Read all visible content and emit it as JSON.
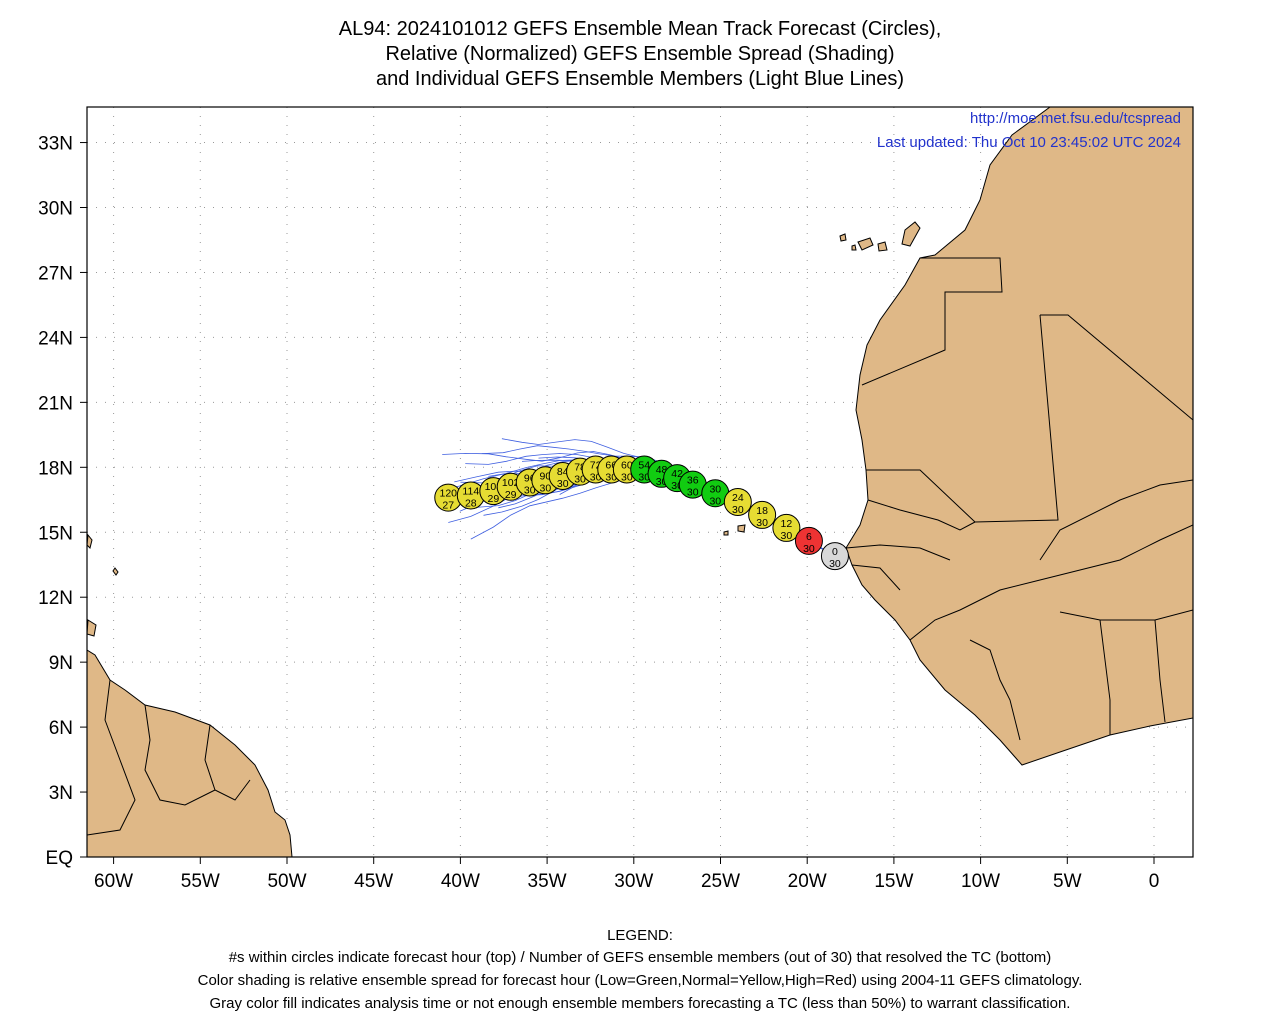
{
  "title": {
    "line1": "AL94: 2024101012 GEFS Ensemble Mean Track Forecast (Circles),",
    "line2": "Relative (Normalized) GEFS Ensemble Spread (Shading)",
    "line3": "and Individual GEFS Ensemble Members (Light Blue Lines)"
  },
  "source_url": "http://moe.met.fsu.edu/tcspread",
  "last_updated": "Last updated: Thu Oct 10 23:45:02 UTC 2024",
  "lat_labels": [
    "33N",
    "30N",
    "27N",
    "24N",
    "21N",
    "18N",
    "15N",
    "12N",
    "9N",
    "6N",
    "3N",
    "EQ"
  ],
  "lon_labels": [
    "60W",
    "55W",
    "50W",
    "45W",
    "40W",
    "35W",
    "30W",
    "25W",
    "20W",
    "15W",
    "10W",
    "5W",
    "0"
  ],
  "colors": {
    "land": "#dfb887",
    "member_track": "#3f5fe0",
    "green": "#11cc11",
    "yellow": "#e6dc33",
    "red": "#ee3333",
    "gray": "#d8d8d8",
    "url_text": "#2233cc"
  },
  "track_points": [
    {
      "hour": "0",
      "members": "30",
      "lon": -18.4,
      "lat": 13.9,
      "spread": "gray"
    },
    {
      "hour": "6",
      "members": "30",
      "lon": -19.9,
      "lat": 14.6,
      "spread": "red"
    },
    {
      "hour": "12",
      "members": "30",
      "lon": -21.2,
      "lat": 15.2,
      "spread": "yellow"
    },
    {
      "hour": "18",
      "members": "30",
      "lon": -22.6,
      "lat": 15.8,
      "spread": "yellow"
    },
    {
      "hour": "24",
      "members": "30",
      "lon": -24.0,
      "lat": 16.4,
      "spread": "yellow"
    },
    {
      "hour": "30",
      "members": "30",
      "lon": -25.3,
      "lat": 16.8,
      "spread": "green"
    },
    {
      "hour": "36",
      "members": "30",
      "lon": -26.6,
      "lat": 17.2,
      "spread": "green"
    },
    {
      "hour": "42",
      "members": "30",
      "lon": -27.5,
      "lat": 17.5,
      "spread": "green"
    },
    {
      "hour": "48",
      "members": "30",
      "lon": -28.4,
      "lat": 17.7,
      "spread": "green"
    },
    {
      "hour": "54",
      "members": "30",
      "lon": -29.4,
      "lat": 17.9,
      "spread": "green"
    },
    {
      "hour": "60",
      "members": "30",
      "lon": -30.4,
      "lat": 17.9,
      "spread": "yellow"
    },
    {
      "hour": "66",
      "members": "30",
      "lon": -31.3,
      "lat": 17.9,
      "spread": "yellow"
    },
    {
      "hour": "72",
      "members": "30",
      "lon": -32.2,
      "lat": 17.9,
      "spread": "yellow"
    },
    {
      "hour": "78",
      "members": "30",
      "lon": -33.1,
      "lat": 17.8,
      "spread": "yellow"
    },
    {
      "hour": "84",
      "members": "30",
      "lon": -34.1,
      "lat": 17.6,
      "spread": "yellow"
    },
    {
      "hour": "90",
      "members": "30",
      "lon": -35.1,
      "lat": 17.4,
      "spread": "yellow"
    },
    {
      "hour": "96",
      "members": "30",
      "lon": -36.0,
      "lat": 17.3,
      "spread": "yellow"
    },
    {
      "hour": "102",
      "members": "29",
      "lon": -37.1,
      "lat": 17.1,
      "spread": "yellow"
    },
    {
      "hour": "108",
      "members": "29",
      "lon": -38.1,
      "lat": 16.9,
      "spread": "yellow"
    },
    {
      "hour": "114",
      "members": "28",
      "lon": -39.4,
      "lat": 16.7,
      "spread": "yellow"
    },
    {
      "hour": "120",
      "members": "27",
      "lon": -40.7,
      "lat": 16.6,
      "spread": "yellow"
    }
  ],
  "legend": {
    "heading": "LEGEND:",
    "line1": "#s within circles indicate forecast hour (top) / Number of GEFS ensemble members (out of 30) that resolved the TC (bottom)",
    "line2": "Color shading is relative ensemble spread for forecast hour (Low=Green,Normal=Yellow,High=Red) using 2004-11 GEFS climatology.",
    "line3": "Gray color fill indicates analysis time or not enough ensemble members forecasting a TC (less than 50%) to warrant classification."
  }
}
